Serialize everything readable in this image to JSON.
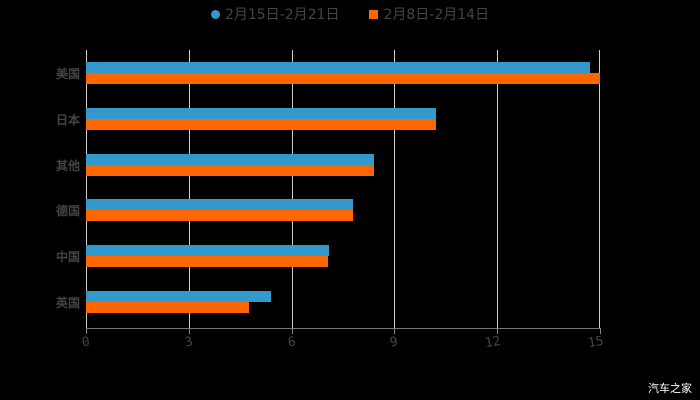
{
  "legend": [
    {
      "label": "2月15日-2月21日",
      "color": "#3399cc",
      "marker": "circle"
    },
    {
      "label": "2月8日-2月14日",
      "color": "#ff6600",
      "marker": "square"
    }
  ],
  "watermark": "汽车之家",
  "chart_data": {
    "type": "bar",
    "orientation": "horizontal",
    "title": "",
    "xlabel": "",
    "ylabel": "",
    "categories": [
      "美国",
      "日本",
      "其他",
      "德国",
      "中国",
      "英国"
    ],
    "series": [
      {
        "name": "2月15日-2月21日",
        "color": "#3399cc",
        "values": [
          14.7,
          10.2,
          8.4,
          7.8,
          7.1,
          5.4
        ]
      },
      {
        "name": "2月8日-2月14日",
        "color": "#ff6600",
        "values": [
          15.0,
          10.2,
          8.4,
          7.8,
          7.05,
          4.75
        ]
      }
    ],
    "xlim": [
      0,
      15
    ],
    "xticks": [
      "0",
      "3",
      "6",
      "9",
      "12",
      "15"
    ],
    "grid": true,
    "legend_position": "top"
  }
}
